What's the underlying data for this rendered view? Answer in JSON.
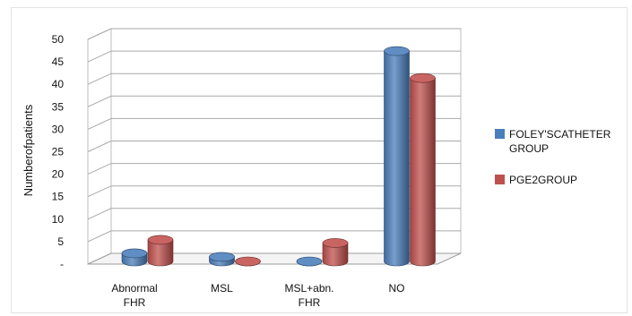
{
  "chart_data": {
    "type": "bar",
    "style": "3d-cylinder",
    "title": "",
    "xlabel": "",
    "ylabel": "Numberofpatients",
    "ylim": [
      0,
      50
    ],
    "yticks": [
      "-",
      "5",
      "10",
      "15",
      "20",
      "25",
      "30",
      "35",
      "40",
      "45",
      "50"
    ],
    "categories": [
      [
        "Abnormal",
        "FHR"
      ],
      [
        "MSL"
      ],
      [
        "MSL+abn.",
        "FHR"
      ],
      [
        "NO"
      ]
    ],
    "series": [
      {
        "name": [
          "FOLEY'SCATHETER",
          "GROUP"
        ],
        "color": "#4a7ebb",
        "values": [
          2,
          1.2,
          0.2,
          47
        ]
      },
      {
        "name": [
          "PGE2GROUP"
        ],
        "color": "#c0504d",
        "values": [
          5,
          0.2,
          4.3,
          41
        ]
      }
    ],
    "grid": true,
    "legend": "right"
  }
}
